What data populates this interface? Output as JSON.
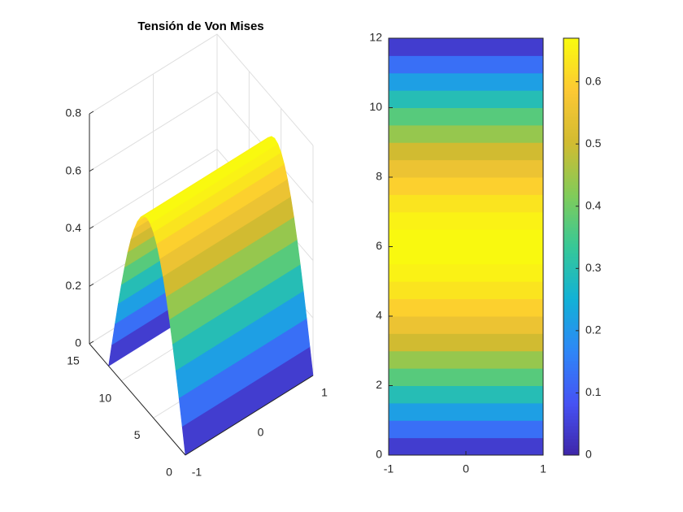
{
  "chart_data": [
    {
      "type": "surface",
      "title": "Tensión de Von Mises",
      "colormap": "parula",
      "grid": true,
      "y": [
        0,
        0.5,
        1,
        1.5,
        2,
        2.5,
        3,
        3.5,
        4,
        4.5,
        5,
        5.5,
        6,
        6.5,
        7,
        7.5,
        8,
        8.5,
        9,
        9.5,
        10,
        10.5,
        11,
        11.5,
        12
      ],
      "values": [
        0,
        0.087,
        0.173,
        0.256,
        0.335,
        0.408,
        0.474,
        0.532,
        0.58,
        0.619,
        0.647,
        0.664,
        0.67,
        0.664,
        0.647,
        0.619,
        0.58,
        0.532,
        0.474,
        0.408,
        0.335,
        0.256,
        0.173,
        0.087,
        0
      ],
      "xlim": [
        -1,
        1
      ],
      "xticks": [
        -1,
        0,
        1
      ],
      "ylim": [
        0,
        15
      ],
      "yticks": [
        0,
        5,
        10,
        15
      ],
      "zlim": [
        0,
        0.8
      ],
      "zticks": [
        0,
        0.2,
        0.4,
        0.6,
        0.8
      ]
    },
    {
      "type": "heatmap",
      "colormap": "parula",
      "colorbar": true,
      "y": [
        0,
        0.5,
        1,
        1.5,
        2,
        2.5,
        3,
        3.5,
        4,
        4.5,
        5,
        5.5,
        6,
        6.5,
        7,
        7.5,
        8,
        8.5,
        9,
        9.5,
        10,
        10.5,
        11,
        11.5,
        12
      ],
      "values": [
        0,
        0.087,
        0.173,
        0.256,
        0.335,
        0.408,
        0.474,
        0.532,
        0.58,
        0.619,
        0.647,
        0.664,
        0.67,
        0.664,
        0.647,
        0.619,
        0.58,
        0.532,
        0.474,
        0.408,
        0.335,
        0.256,
        0.173,
        0.087,
        0
      ],
      "xlim": [
        -1,
        1
      ],
      "xticks": [
        -1,
        0,
        1
      ],
      "ylim": [
        0,
        12
      ],
      "yticks": [
        0,
        2,
        4,
        6,
        8,
        10,
        12
      ],
      "clim": [
        0,
        0.67
      ],
      "cticks": [
        0,
        0.1,
        0.2,
        0.3,
        0.4,
        0.5,
        0.6
      ]
    }
  ]
}
